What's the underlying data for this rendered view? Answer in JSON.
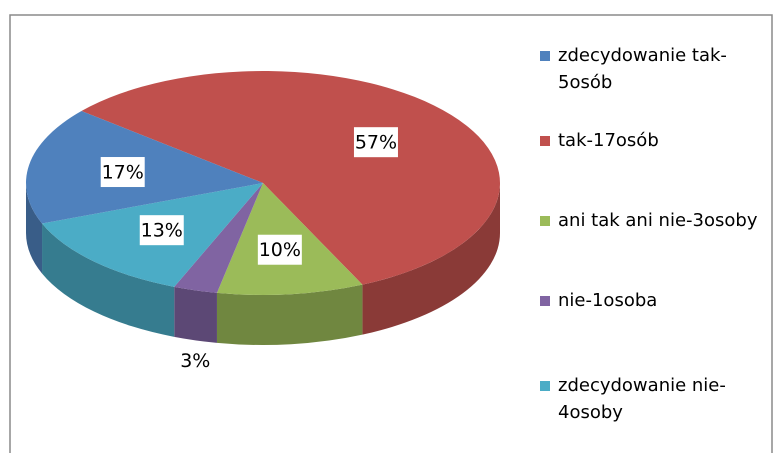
{
  "chart_data": {
    "type": "pie3d",
    "categories": [
      "zdecydowanie tak-5osób",
      "tak-17osób",
      "ani tak ani nie-3osoby",
      "nie-1osoba",
      "zdecydowanie nie-4osoby"
    ],
    "values": [
      17,
      57,
      10,
      3,
      13
    ],
    "value_labels": [
      "17%",
      "57%",
      "10%",
      "3%",
      "13%"
    ],
    "colors": [
      "#4f81bd",
      "#c0504d",
      "#9bbb59",
      "#8064a2",
      "#4bacc6"
    ],
    "legend": "right"
  }
}
